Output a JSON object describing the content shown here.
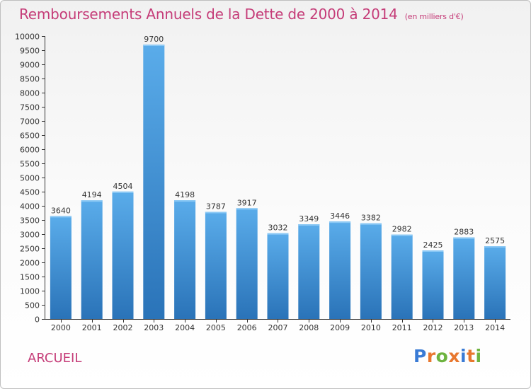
{
  "header": {
    "title": "Remboursements Annuels de la Dette de 2000 à 2014",
    "unit": "(en milliers d'€)"
  },
  "footer": {
    "city": "ARCUEIL",
    "logo_text": "Proxiti",
    "logo_colors": [
      "#3a7bd5",
      "#e8772e",
      "#6db33f",
      "#e8772e",
      "#3a7bd5",
      "#e8772e",
      "#6db33f"
    ]
  },
  "colors": {
    "title": "#c53c78",
    "bar_top": "#5aacea",
    "bar_bottom": "#2a73b8",
    "axis": "#333333",
    "label": "#333333"
  },
  "chart_data": {
    "type": "bar",
    "title": "Remboursements Annuels de la Dette de 2000 à 2014",
    "subtitle": "(en milliers d'€)",
    "xlabel": "",
    "ylabel": "",
    "categories": [
      "2000",
      "2001",
      "2002",
      "2003",
      "2004",
      "2005",
      "2006",
      "2007",
      "2008",
      "2009",
      "2010",
      "2011",
      "2012",
      "2013",
      "2014"
    ],
    "values": [
      3640,
      4194,
      4504,
      9700,
      4198,
      3787,
      3917,
      3032,
      3349,
      3446,
      3382,
      2982,
      2425,
      2883,
      2575
    ],
    "ylim": [
      0,
      10000
    ],
    "yticks": [
      0,
      500,
      1000,
      1500,
      2000,
      2500,
      3000,
      3500,
      4000,
      4500,
      5000,
      5500,
      6000,
      6500,
      7000,
      7500,
      8000,
      8500,
      9000,
      9500,
      10000
    ],
    "grid": false,
    "legend": "none",
    "data_labels": true
  }
}
